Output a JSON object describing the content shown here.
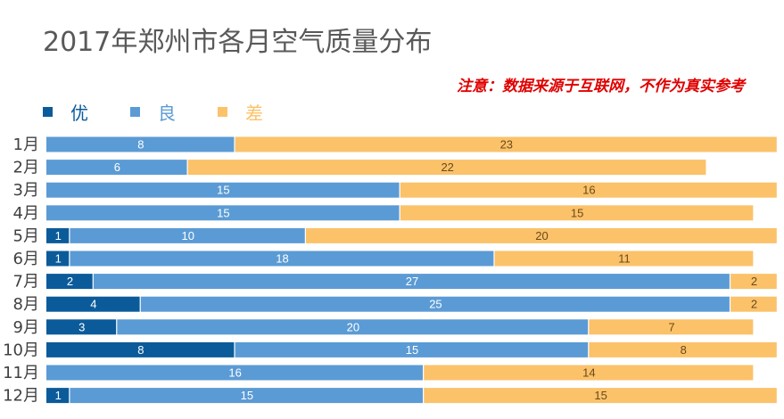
{
  "title": "2017年郑州市各月空气质量分布",
  "note": "注意：数据来源于互联网，不作为真实参考",
  "chart_data": {
    "type": "bar",
    "orientation": "horizontal",
    "stacked": true,
    "title": "2017年郑州市各月空气质量分布",
    "categories": [
      "1月",
      "2月",
      "3月",
      "4月",
      "5月",
      "6月",
      "7月",
      "8月",
      "9月",
      "10月",
      "11月",
      "12月"
    ],
    "series": [
      {
        "name": "优",
        "color": "#0b5b9b",
        "values": [
          0,
          0,
          0,
          0,
          1,
          1,
          2,
          4,
          3,
          8,
          0,
          1
        ]
      },
      {
        "name": "良",
        "color": "#5b9bd5",
        "values": [
          8,
          6,
          15,
          15,
          10,
          18,
          27,
          25,
          20,
          15,
          16,
          15
        ]
      },
      {
        "name": "差",
        "color": "#fbc26a",
        "values": [
          23,
          22,
          16,
          15,
          20,
          11,
          2,
          2,
          7,
          8,
          14,
          15
        ]
      }
    ],
    "xlim": [
      0,
      31
    ],
    "legend_position": "top-left",
    "grid": false
  }
}
